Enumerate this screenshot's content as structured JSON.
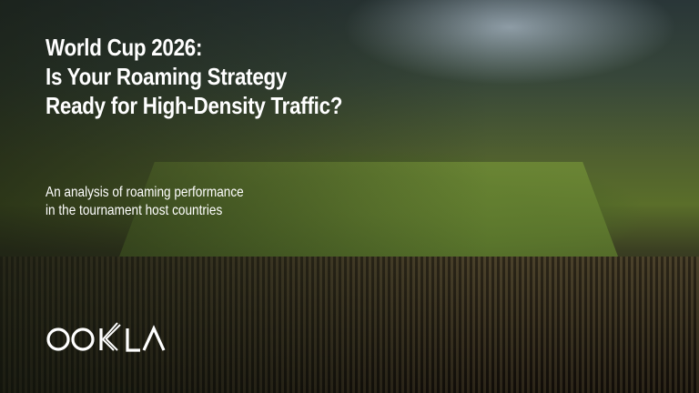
{
  "headline": {
    "lines": [
      "World Cup 2026:",
      "Is Your Roaming Strategy",
      "Ready for High-Density Traffic?"
    ]
  },
  "subtitle": {
    "lines": [
      "An analysis of roaming performance",
      "in the tournament host countries"
    ]
  },
  "logo": {
    "text": "OOKLA",
    "color": "#ffffff"
  }
}
